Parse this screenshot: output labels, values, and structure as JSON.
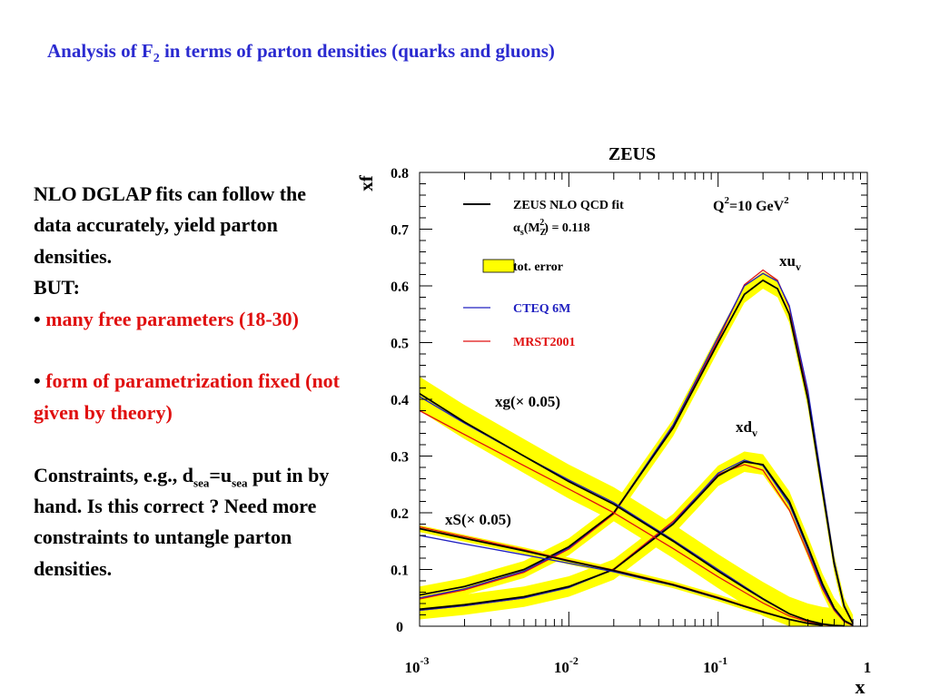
{
  "slide": {
    "title_main": "Analysis of F",
    "title_sub": "2",
    "title_rest": " in terms of parton densities (quarks and gluons)",
    "text": {
      "p1": "NLO DGLAP fits can follow the data accurately, yield parton densities.",
      "but": "BUT:",
      "bullet": "•",
      "b1": "many free parameters (18-30)",
      "b2": "form of parametrization fixed (not given by theory)",
      "c_pre": "Constraints, e.g., d",
      "c_sub1": "sea",
      "c_eq": "=u",
      "c_sub2": "sea",
      "c_post": " put in by hand.  Is this correct ? Need more constraints to untangle parton densities."
    },
    "colors": {
      "title": "#2b2bd0",
      "red": "#e01010",
      "band": "#ffff00",
      "zeus": "#000000",
      "cteq": "#2020c0",
      "mrst": "#e01010"
    }
  },
  "chart_data": {
    "type": "line",
    "title": "ZEUS",
    "xlabel": "x",
    "ylabel": "xf",
    "x_scale": "log",
    "xlim": [
      0.001,
      1
    ],
    "ylim": [
      0,
      0.8
    ],
    "x_ticks": [
      0.001,
      0.01,
      0.1,
      1
    ],
    "x_tick_labels": [
      {
        "base": "10",
        "exp": "-3"
      },
      {
        "base": "10",
        "exp": "-2"
      },
      {
        "base": "10",
        "exp": "-1"
      },
      {
        "base": "1",
        "exp": ""
      }
    ],
    "y_ticks": [
      0,
      0.1,
      0.2,
      0.3,
      0.4,
      0.5,
      0.6,
      0.7,
      0.8
    ],
    "y_tick_labels": [
      "0",
      "0.1",
      "0.2",
      "0.3",
      "0.4",
      "0.5",
      "0.6",
      "0.7",
      "0.8"
    ],
    "legend": {
      "placement": "top-left",
      "entries": [
        {
          "label": "ZEUS NLO QCD fit",
          "kind": "line",
          "color": "#000000"
        },
        {
          "label": "tot. error",
          "kind": "band",
          "color": "#ffff00"
        },
        {
          "label": "CTEQ 6M",
          "kind": "line",
          "color": "#2020c0"
        },
        {
          "label": "MRST2001",
          "kind": "line",
          "color": "#e01010"
        }
      ],
      "alpha_label": "α_s(M_Z^2) = 0.118"
    },
    "q2_label": "Q²=10 GeV²",
    "curve_labels": [
      {
        "curve": "xuv",
        "text": "xu",
        "sub": "v"
      },
      {
        "curve": "xdv",
        "text": "xd",
        "sub": "v"
      },
      {
        "curve": "xg",
        "text": "xg(× 0.05)",
        "sub": ""
      },
      {
        "curve": "xS",
        "text": "xS(× 0.05)",
        "sub": ""
      }
    ],
    "curves": [
      {
        "id": "xuv",
        "x": [
          0.001,
          0.002,
          0.005,
          0.01,
          0.02,
          0.05,
          0.1,
          0.15,
          0.2,
          0.25,
          0.3,
          0.4,
          0.5,
          0.6,
          0.7,
          0.8
        ],
        "zeus": [
          0.055,
          0.07,
          0.1,
          0.14,
          0.2,
          0.35,
          0.5,
          0.585,
          0.61,
          0.595,
          0.55,
          0.4,
          0.24,
          0.11,
          0.035,
          0.005
        ],
        "cteq": [
          0.05,
          0.066,
          0.097,
          0.138,
          0.2,
          0.355,
          0.51,
          0.6,
          0.622,
          0.608,
          0.565,
          0.415,
          0.25,
          0.115,
          0.037,
          0.005
        ],
        "mrst": [
          0.048,
          0.064,
          0.095,
          0.136,
          0.198,
          0.352,
          0.505,
          0.602,
          0.628,
          0.61,
          0.562,
          0.408,
          0.243,
          0.11,
          0.034,
          0.004
        ],
        "band": 0.015
      },
      {
        "id": "xdv",
        "x": [
          0.001,
          0.002,
          0.005,
          0.01,
          0.02,
          0.05,
          0.1,
          0.15,
          0.2,
          0.3,
          0.4,
          0.5,
          0.6,
          0.7,
          0.8
        ],
        "zeus": [
          0.03,
          0.038,
          0.052,
          0.07,
          0.1,
          0.18,
          0.265,
          0.29,
          0.285,
          0.22,
          0.14,
          0.075,
          0.032,
          0.01,
          0.002
        ],
        "cteq": [
          0.028,
          0.036,
          0.05,
          0.068,
          0.1,
          0.182,
          0.27,
          0.293,
          0.283,
          0.215,
          0.135,
          0.07,
          0.03,
          0.009,
          0.002
        ],
        "mrst": [
          0.028,
          0.036,
          0.05,
          0.069,
          0.101,
          0.185,
          0.268,
          0.285,
          0.275,
          0.205,
          0.128,
          0.066,
          0.028,
          0.008,
          0.001
        ],
        "band": 0.018
      },
      {
        "id": "xg",
        "x": [
          0.001,
          0.002,
          0.005,
          0.01,
          0.02,
          0.05,
          0.1,
          0.15,
          0.2,
          0.3,
          0.4,
          0.5,
          0.6,
          0.7
        ],
        "zeus": [
          0.41,
          0.36,
          0.3,
          0.255,
          0.215,
          0.15,
          0.097,
          0.068,
          0.048,
          0.022,
          0.01,
          0.004,
          0.0015,
          0.0005
        ],
        "cteq": [
          0.405,
          0.358,
          0.3,
          0.258,
          0.218,
          0.152,
          0.1,
          0.07,
          0.049,
          0.022,
          0.01,
          0.004,
          0.0015,
          0.0005
        ],
        "mrst": [
          0.38,
          0.338,
          0.283,
          0.242,
          0.2,
          0.137,
          0.087,
          0.06,
          0.041,
          0.018,
          0.008,
          0.003,
          0.001,
          0.0004
        ],
        "band": 0.03
      },
      {
        "id": "xS",
        "x": [
          0.001,
          0.002,
          0.005,
          0.01,
          0.02,
          0.05,
          0.1,
          0.15,
          0.2,
          0.3,
          0.4,
          0.5
        ],
        "zeus": [
          0.172,
          0.155,
          0.133,
          0.115,
          0.098,
          0.073,
          0.05,
          0.035,
          0.025,
          0.012,
          0.005,
          0.002
        ],
        "cteq": [
          0.16,
          0.145,
          0.126,
          0.111,
          0.096,
          0.072,
          0.049,
          0.035,
          0.025,
          0.012,
          0.005,
          0.002
        ],
        "mrst": [
          0.175,
          0.158,
          0.135,
          0.116,
          0.099,
          0.074,
          0.051,
          0.036,
          0.026,
          0.012,
          0.005,
          0.002
        ],
        "band": 0.006
      }
    ]
  }
}
